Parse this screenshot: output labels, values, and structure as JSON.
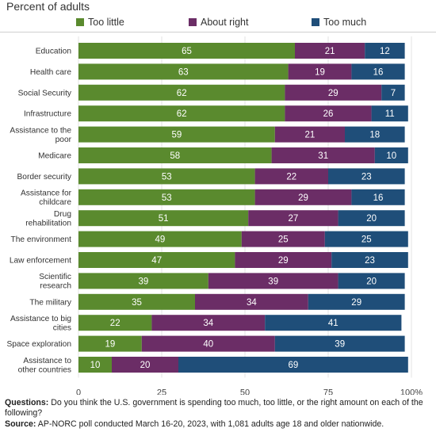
{
  "header": {
    "subtitle": "Percent of adults"
  },
  "legend": [
    {
      "label": "Too little",
      "color": "#5a8a2e"
    },
    {
      "label": "About right",
      "color": "#6b2d66"
    },
    {
      "label": "Too much",
      "color": "#1f4e79"
    }
  ],
  "chart_data": {
    "type": "bar",
    "orientation": "horizontal",
    "stacked": true,
    "categories": [
      "Education",
      "Health care",
      "Social Security",
      "Infrastructure",
      "Assistance to the poor",
      "Medicare",
      "Border security",
      "Assistance for childcare",
      "Drug rehabilitation",
      "The environment",
      "Law enforcement",
      "Scientific research",
      "The military",
      "Assistance to big cities",
      "Space exploration",
      "Assistance to other countries"
    ],
    "series": [
      {
        "name": "Too little",
        "color": "#5a8a2e",
        "values": [
          65,
          63,
          62,
          62,
          59,
          58,
          53,
          53,
          51,
          49,
          47,
          39,
          35,
          22,
          19,
          10
        ]
      },
      {
        "name": "About right",
        "color": "#6b2d66",
        "values": [
          21,
          19,
          29,
          26,
          21,
          31,
          22,
          29,
          27,
          25,
          29,
          39,
          34,
          34,
          40,
          20
        ]
      },
      {
        "name": "Too much",
        "color": "#1f4e79",
        "values": [
          12,
          16,
          7,
          11,
          18,
          10,
          23,
          16,
          20,
          25,
          23,
          20,
          29,
          41,
          39,
          69
        ]
      }
    ],
    "xlim": [
      0,
      100
    ],
    "xticks": [
      "0",
      "25",
      "50",
      "75",
      "100%"
    ],
    "grid": true,
    "legend_position": "top"
  },
  "footnote": {
    "questions_label": "Questions:",
    "questions_text": " Do you think the U.S. government is spending too much, too little, or the right amount on each of the following?",
    "source_label": "Source:",
    "source_text": " AP-NORC poll conducted March 16-20, 2023, with 1,081 adults age 18 and older nationwide."
  }
}
